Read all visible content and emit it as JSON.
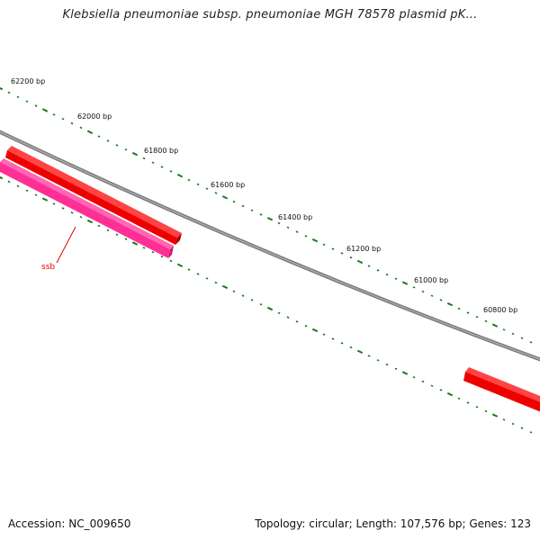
{
  "title": "Klebsiella pneumoniae subsp. pneumoniae MGH 78578 plasmid pK...",
  "colors": {
    "backbone": "#888888",
    "forward_gene": "#ff0000",
    "reverse_gene": "#ff3399",
    "tick": "#1a7a1a",
    "gene_label": "#dd0000"
  },
  "ruler": {
    "unit": "bp",
    "labels": [
      "62200 bp",
      "62000 bp",
      "61800 bp",
      "61600 bp",
      "61400 bp",
      "61200 bp",
      "61000 bp",
      "60800 bp"
    ],
    "positions_bp": [
      62200,
      62000,
      61800,
      61600,
      61400,
      61200,
      61000,
      60800
    ]
  },
  "genes": [
    {
      "name": "",
      "strand": "forward",
      "color": "#ff0000"
    },
    {
      "name": "ssb",
      "strand": "reverse",
      "color": "#ff3399"
    },
    {
      "name": "",
      "strand": "forward",
      "color": "#ff0000"
    }
  ],
  "footer": {
    "accession": "Accession: NC_009650",
    "summary": "Topology: circular; Length: 107,576 bp; Genes: 123"
  }
}
